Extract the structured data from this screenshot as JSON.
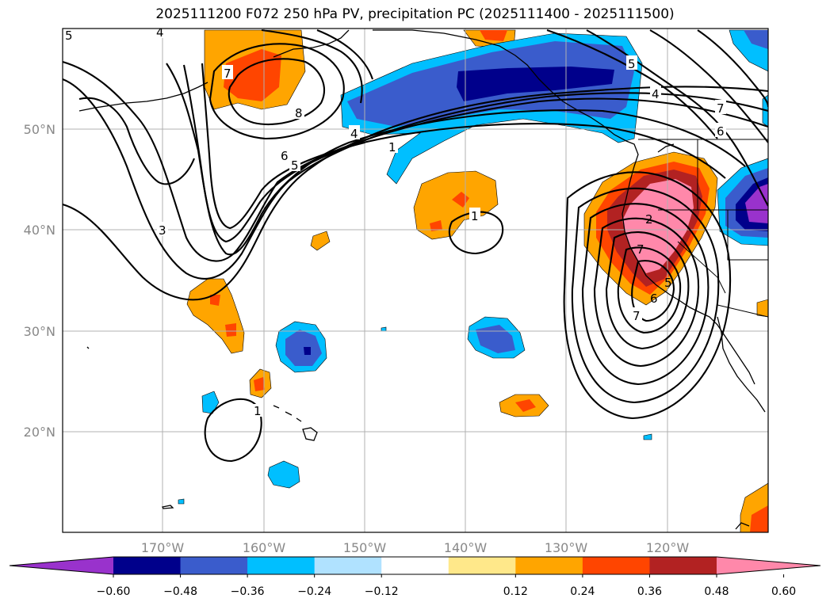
{
  "title": "2025111200 F072 250 hPa PV, precipitation PC (2025111400 - 2025111500)",
  "longitude_ticks": [
    "170°W",
    "160°W",
    "150°W",
    "140°W",
    "130°W",
    "120°W"
  ],
  "latitude_ticks": [
    "20°N",
    "30°N",
    "40°N",
    "50°N"
  ],
  "colorbar": {
    "tick_labels": [
      "−0.60",
      "−0.48",
      "−0.36",
      "−0.24",
      "−0.12",
      "0.12",
      "0.24",
      "0.36",
      "0.48",
      "0.60"
    ],
    "colors": [
      "#9932cc",
      "#00008b",
      "#3a5ccc",
      "#00bfff",
      "#b0e2ff",
      "#ffffff",
      "#ffe88a",
      "#ffa500",
      "#ff4500",
      "#b22222",
      "#ff88aa"
    ]
  },
  "contour_labels": [
    "5",
    "4",
    "7",
    "8",
    "6",
    "5",
    "4",
    "1",
    "3",
    "1",
    "1",
    "5",
    "2",
    "7",
    "6",
    "5",
    "7",
    "7",
    "6",
    "4"
  ],
  "map": {
    "lon_range": [
      -180,
      -110
    ],
    "lat_range": [
      10,
      60
    ],
    "fields": [
      "250 hPa PV contours",
      "precipitation PC shading"
    ]
  }
}
